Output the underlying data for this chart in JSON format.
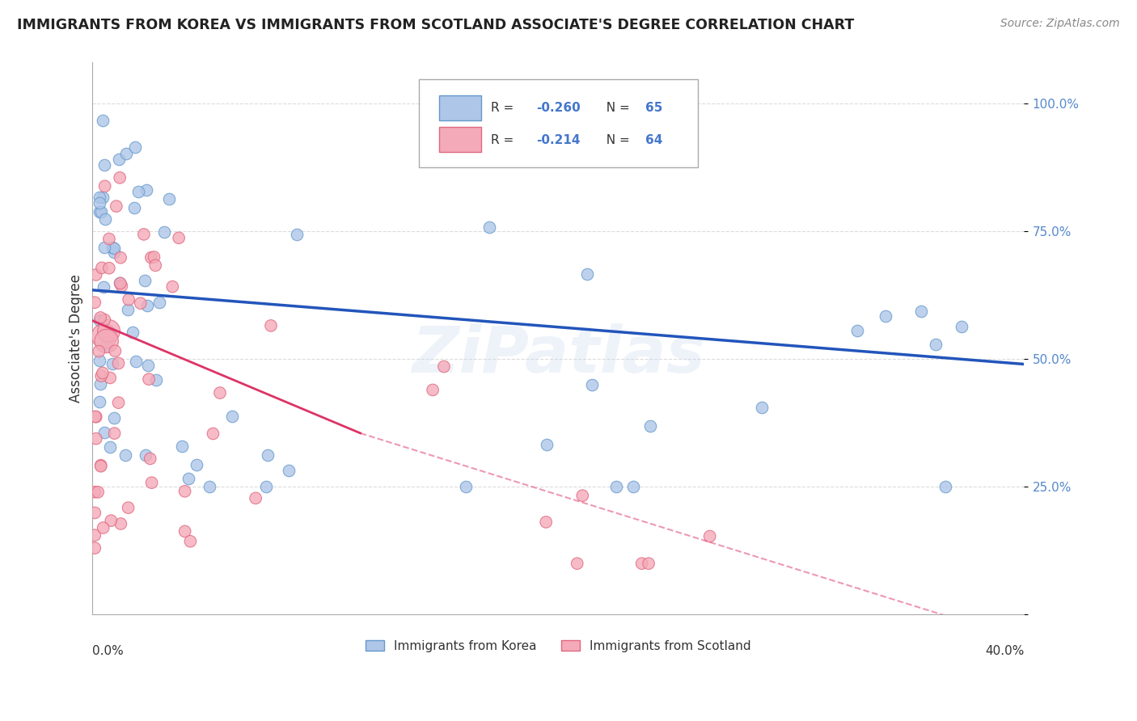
{
  "title": "IMMIGRANTS FROM KOREA VS IMMIGRANTS FROM SCOTLAND ASSOCIATE'S DEGREE CORRELATION CHART",
  "source": "Source: ZipAtlas.com",
  "ylabel": "Associate's Degree",
  "y_tick_labels": [
    "",
    "25.0%",
    "50.0%",
    "75.0%",
    "100.0%"
  ],
  "y_tick_vals": [
    0.0,
    0.25,
    0.5,
    0.75,
    1.0
  ],
  "legend_label_blue": "Immigrants from Korea",
  "legend_label_pink": "Immigrants from Scotland",
  "blue_color": "#aec6e8",
  "blue_edge": "#6699cc",
  "pink_color": "#f4aab8",
  "pink_edge": "#e06880",
  "trend_blue": "#2255bb",
  "trend_pink": "#dd3366",
  "watermark": "ZiPatlas",
  "r_blue": "-0.260",
  "n_blue": "65",
  "r_pink": "-0.214",
  "n_pink": "64",
  "val_color": "#4477cc",
  "label_color": "#333333",
  "source_color": "#888888",
  "title_color": "#222222",
  "grid_color": "#cccccc",
  "ytick_color": "#5588cc"
}
